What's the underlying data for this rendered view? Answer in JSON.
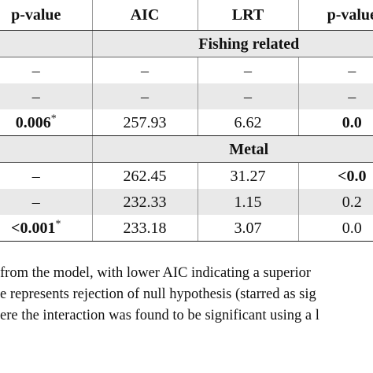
{
  "table": {
    "headers": [
      "p-value",
      "AIC",
      "LRT",
      "p-value"
    ],
    "sections": [
      {
        "title": "Fishing related",
        "rows": [
          {
            "p1": "–",
            "p1_star": "",
            "p1_bold": false,
            "aic": "–",
            "lrt": "–",
            "p2": "–",
            "p2_bold": false
          },
          {
            "p1": "–",
            "p1_star": "",
            "p1_bold": false,
            "aic": "–",
            "lrt": "–",
            "p2": "–",
            "p2_bold": false
          },
          {
            "p1": "0.006",
            "p1_star": "*",
            "p1_bold": true,
            "aic": "257.93",
            "lrt": "6.62",
            "p2": "0.0",
            "p2_bold": true
          }
        ]
      },
      {
        "title": "Metal",
        "rows": [
          {
            "p1": "–",
            "p1_star": "",
            "p1_bold": false,
            "aic": "262.45",
            "lrt": "31.27",
            "p2": "<0.0",
            "p2_bold": true
          },
          {
            "p1": "–",
            "p1_star": "",
            "p1_bold": false,
            "aic": "232.33",
            "lrt": "1.15",
            "p2": "0.2",
            "p2_bold": false
          },
          {
            "p1": "<0.001",
            "p1_star": "*",
            "p1_bold": true,
            "aic": "233.18",
            "lrt": "3.07",
            "p2": "0.0",
            "p2_bold": false
          }
        ]
      }
    ]
  },
  "notes": [
    "from the model, with lower AIC indicating a superior",
    "e represents rejection of null hypothesis (starred as sig",
    "ere the interaction was found to be significant using a l"
  ],
  "colors": {
    "shade": "#e9e9e9",
    "rule": "#222222"
  }
}
